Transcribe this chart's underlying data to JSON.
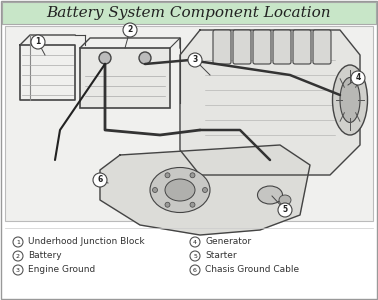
{
  "title": "Battery System Component Location",
  "title_bg_color": "#c8e6c8",
  "title_fontsize": 11,
  "bg_color": "#ffffff",
  "legend_items_left": [
    [
      "①",
      "Underhood Junction Block"
    ],
    [
      "②",
      "Battery"
    ],
    [
      "③",
      "Engine Ground"
    ]
  ],
  "legend_items_right": [
    [
      "④",
      "Generator"
    ],
    [
      "⑤",
      "Starter"
    ],
    [
      "⑥",
      "Chasis Ground Cable"
    ]
  ],
  "legend_fontsize": 6.5,
  "legend_symbol_fontsize": 7,
  "diagram_bg": "#f5f5f0",
  "border_color": "#888888",
  "line_color": "#444444",
  "diagram_text_color": "#555555"
}
